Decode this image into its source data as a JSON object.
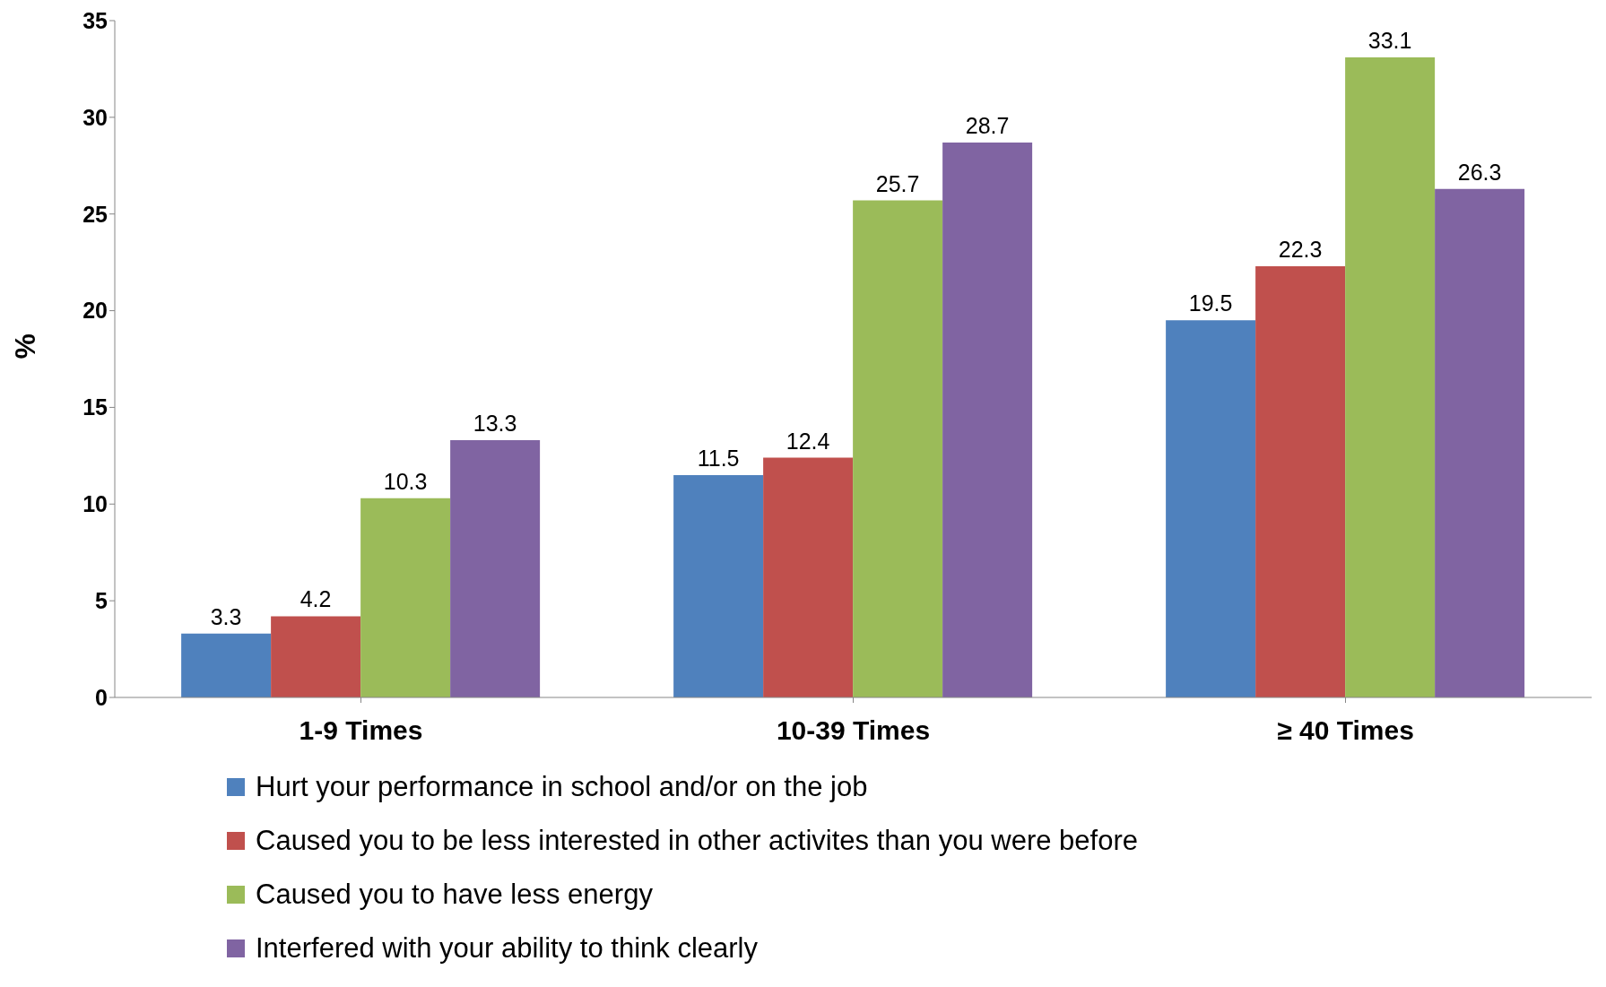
{
  "chart_data": {
    "type": "bar",
    "ylabel": "%",
    "categories": [
      "1-9 Times",
      "10-39 Times",
      "≥ 40 Times"
    ],
    "series": [
      {
        "name": "Hurt your performance in school and/or on the job",
        "color": "#4f81bd",
        "values": [
          3.3,
          11.5,
          19.5
        ]
      },
      {
        "name": "Caused you to be less interested in other activites than you were before",
        "color": "#c0504d",
        "values": [
          4.2,
          12.4,
          22.3
        ]
      },
      {
        "name": "Caused you to have less energy",
        "color": "#9bbb59",
        "values": [
          10.3,
          25.7,
          33.1
        ]
      },
      {
        "name": "Interfered with your ability to think clearly",
        "color": "#8064a2",
        "values": [
          13.3,
          28.7,
          26.3
        ]
      }
    ],
    "ylim": [
      0,
      35
    ],
    "yticks": [
      0,
      5,
      10,
      15,
      20,
      25,
      30,
      35
    ],
    "grid": false,
    "legend": "bottom",
    "data_labels": true
  }
}
